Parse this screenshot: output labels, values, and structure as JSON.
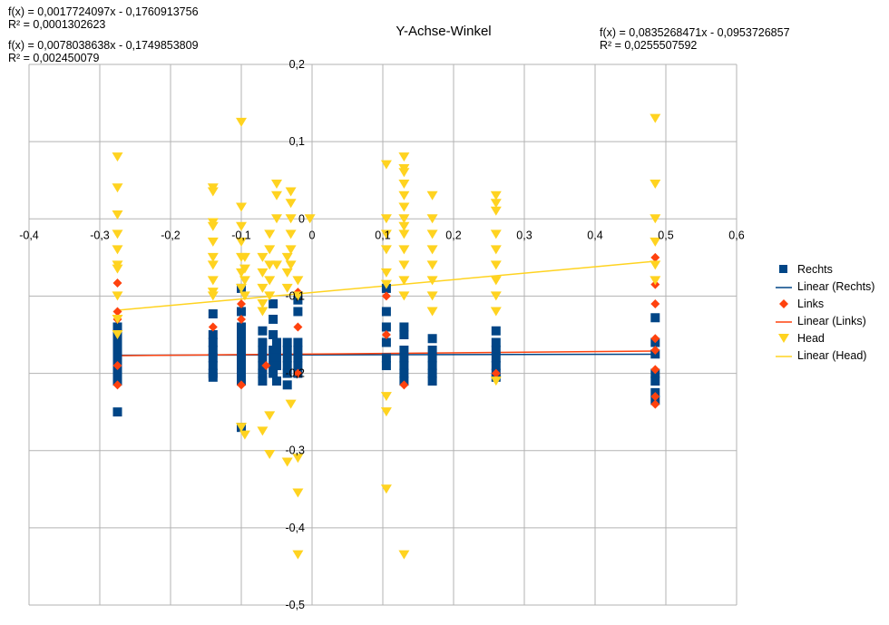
{
  "chart_data": {
    "type": "scatter",
    "title": "Y-Achse-Winkel",
    "xlim": [
      -0.4,
      0.6
    ],
    "ylim": [
      -0.5,
      0.2
    ],
    "x_ticks": [
      -0.4,
      -0.3,
      -0.2,
      -0.1,
      0,
      0.1,
      0.2,
      0.3,
      0.4,
      0.5,
      0.6
    ],
    "x_tick_labels": [
      "-0,4",
      "-0,3",
      "-0,2",
      "-0,1",
      "0",
      "0,1",
      "0,2",
      "0,3",
      "0,4",
      "0,5",
      "0,6"
    ],
    "y_ticks": [
      0.2,
      0.1,
      0,
      -0.1,
      -0.2,
      -0.3,
      -0.4,
      -0.5
    ],
    "y_tick_labels": [
      "0,2",
      "0,1",
      "0",
      "-0,1",
      "-0,2",
      "-0,3",
      "-0,4",
      "-0,5"
    ],
    "grid": true,
    "legend_position": "right",
    "series": [
      {
        "name": "Rechts",
        "marker": "square",
        "color": "#004586",
        "points": [
          [
            -0.275,
            -0.14
          ],
          [
            -0.275,
            -0.15
          ],
          [
            -0.275,
            -0.16
          ],
          [
            -0.275,
            -0.17
          ],
          [
            -0.275,
            -0.18
          ],
          [
            -0.275,
            -0.19
          ],
          [
            -0.275,
            -0.2
          ],
          [
            -0.275,
            -0.21
          ],
          [
            -0.275,
            -0.25
          ],
          [
            -0.14,
            -0.123
          ],
          [
            -0.14,
            -0.15
          ],
          [
            -0.14,
            -0.16
          ],
          [
            -0.14,
            -0.17
          ],
          [
            -0.14,
            -0.18
          ],
          [
            -0.14,
            -0.19
          ],
          [
            -0.14,
            -0.2
          ],
          [
            -0.14,
            -0.205
          ],
          [
            -0.1,
            -0.09
          ],
          [
            -0.1,
            -0.12
          ],
          [
            -0.1,
            -0.14
          ],
          [
            -0.1,
            -0.15
          ],
          [
            -0.1,
            -0.16
          ],
          [
            -0.1,
            -0.17
          ],
          [
            -0.1,
            -0.18
          ],
          [
            -0.1,
            -0.19
          ],
          [
            -0.1,
            -0.2
          ],
          [
            -0.1,
            -0.21
          ],
          [
            -0.1,
            -0.27
          ],
          [
            -0.07,
            -0.145
          ],
          [
            -0.07,
            -0.16
          ],
          [
            -0.07,
            -0.17
          ],
          [
            -0.07,
            -0.18
          ],
          [
            -0.07,
            -0.19
          ],
          [
            -0.07,
            -0.2
          ],
          [
            -0.07,
            -0.21
          ],
          [
            -0.055,
            -0.11
          ],
          [
            -0.055,
            -0.13
          ],
          [
            -0.055,
            -0.15
          ],
          [
            -0.055,
            -0.17
          ],
          [
            -0.055,
            -0.18
          ],
          [
            -0.055,
            -0.19
          ],
          [
            -0.055,
            -0.2
          ],
          [
            -0.05,
            -0.16
          ],
          [
            -0.05,
            -0.17
          ],
          [
            -0.05,
            -0.18
          ],
          [
            -0.05,
            -0.19
          ],
          [
            -0.05,
            -0.21
          ],
          [
            -0.035,
            -0.16
          ],
          [
            -0.035,
            -0.17
          ],
          [
            -0.035,
            -0.18
          ],
          [
            -0.035,
            -0.19
          ],
          [
            -0.035,
            -0.2
          ],
          [
            -0.035,
            -0.215
          ],
          [
            -0.02,
            -0.105
          ],
          [
            -0.02,
            -0.12
          ],
          [
            -0.02,
            -0.16
          ],
          [
            -0.02,
            -0.17
          ],
          [
            -0.02,
            -0.18
          ],
          [
            -0.02,
            -0.19
          ],
          [
            -0.02,
            -0.2
          ],
          [
            0.105,
            -0.09
          ],
          [
            0.105,
            -0.12
          ],
          [
            0.105,
            -0.14
          ],
          [
            0.105,
            -0.16
          ],
          [
            0.105,
            -0.18
          ],
          [
            0.105,
            -0.19
          ],
          [
            0.13,
            -0.14
          ],
          [
            0.13,
            -0.15
          ],
          [
            0.13,
            -0.17
          ],
          [
            0.13,
            -0.18
          ],
          [
            0.13,
            -0.19
          ],
          [
            0.13,
            -0.2
          ],
          [
            0.13,
            -0.21
          ],
          [
            0.17,
            -0.155
          ],
          [
            0.17,
            -0.17
          ],
          [
            0.17,
            -0.18
          ],
          [
            0.17,
            -0.19
          ],
          [
            0.17,
            -0.2
          ],
          [
            0.17,
            -0.21
          ],
          [
            0.26,
            -0.145
          ],
          [
            0.26,
            -0.16
          ],
          [
            0.26,
            -0.17
          ],
          [
            0.26,
            -0.18
          ],
          [
            0.26,
            -0.19
          ],
          [
            0.26,
            -0.2
          ],
          [
            0.26,
            -0.205
          ],
          [
            0.485,
            -0.128
          ],
          [
            0.485,
            -0.16
          ],
          [
            0.485,
            -0.175
          ],
          [
            0.485,
            -0.2
          ],
          [
            0.485,
            -0.21
          ],
          [
            0.485,
            -0.225
          ],
          [
            0.485,
            -0.235
          ]
        ]
      },
      {
        "name": "Links",
        "marker": "diamond",
        "color": "#ff420e",
        "points": [
          [
            -0.275,
            -0.083
          ],
          [
            -0.275,
            -0.12
          ],
          [
            -0.275,
            -0.13
          ],
          [
            -0.275,
            -0.19
          ],
          [
            -0.275,
            -0.215
          ],
          [
            -0.14,
            -0.14
          ],
          [
            -0.1,
            -0.11
          ],
          [
            -0.1,
            -0.13
          ],
          [
            -0.1,
            -0.215
          ],
          [
            -0.065,
            -0.19
          ],
          [
            -0.02,
            -0.095
          ],
          [
            -0.02,
            -0.14
          ],
          [
            -0.02,
            -0.2
          ],
          [
            0.105,
            -0.1
          ],
          [
            0.105,
            -0.15
          ],
          [
            0.13,
            -0.215
          ],
          [
            0.26,
            -0.2
          ],
          [
            0.485,
            -0.05
          ],
          [
            0.485,
            -0.085
          ],
          [
            0.485,
            -0.11
          ],
          [
            0.485,
            -0.155
          ],
          [
            0.485,
            -0.17
          ],
          [
            0.485,
            -0.195
          ],
          [
            0.485,
            -0.23
          ],
          [
            0.485,
            -0.24
          ]
        ]
      },
      {
        "name": "Head",
        "marker": "triangle-down",
        "color": "#ffd320",
        "points": [
          [
            -0.275,
            0.08
          ],
          [
            -0.275,
            0.04
          ],
          [
            -0.275,
            0.005
          ],
          [
            -0.275,
            -0.02
          ],
          [
            -0.275,
            -0.04
          ],
          [
            -0.275,
            -0.06
          ],
          [
            -0.275,
            -0.065
          ],
          [
            -0.275,
            -0.1
          ],
          [
            -0.275,
            -0.13
          ],
          [
            -0.275,
            -0.15
          ],
          [
            -0.14,
            0.04
          ],
          [
            -0.14,
            0.035
          ],
          [
            -0.14,
            -0.005
          ],
          [
            -0.14,
            -0.01
          ],
          [
            -0.14,
            -0.03
          ],
          [
            -0.14,
            -0.05
          ],
          [
            -0.14,
            -0.06
          ],
          [
            -0.14,
            -0.08
          ],
          [
            -0.14,
            -0.095
          ],
          [
            -0.14,
            -0.1
          ],
          [
            -0.1,
            0.125
          ],
          [
            -0.1,
            0.015
          ],
          [
            -0.1,
            -0.01
          ],
          [
            -0.1,
            -0.03
          ],
          [
            -0.1,
            -0.05
          ],
          [
            -0.1,
            -0.07
          ],
          [
            -0.1,
            -0.09
          ],
          [
            -0.1,
            -0.27
          ],
          [
            -0.095,
            -0.05
          ],
          [
            -0.095,
            -0.065
          ],
          [
            -0.095,
            -0.08
          ],
          [
            -0.095,
            -0.1
          ],
          [
            -0.095,
            -0.28
          ],
          [
            -0.07,
            -0.05
          ],
          [
            -0.07,
            -0.07
          ],
          [
            -0.07,
            -0.09
          ],
          [
            -0.07,
            -0.11
          ],
          [
            -0.07,
            -0.12
          ],
          [
            -0.07,
            -0.275
          ],
          [
            -0.06,
            -0.02
          ],
          [
            -0.06,
            -0.04
          ],
          [
            -0.06,
            -0.06
          ],
          [
            -0.06,
            -0.08
          ],
          [
            -0.06,
            -0.1
          ],
          [
            -0.06,
            -0.255
          ],
          [
            -0.06,
            -0.305
          ],
          [
            -0.05,
            0.045
          ],
          [
            -0.05,
            0.03
          ],
          [
            -0.05,
            0.0
          ],
          [
            -0.05,
            -0.06
          ],
          [
            -0.035,
            -0.05
          ],
          [
            -0.035,
            -0.07
          ],
          [
            -0.035,
            -0.09
          ],
          [
            -0.035,
            -0.315
          ],
          [
            -0.03,
            0.035
          ],
          [
            -0.03,
            0.02
          ],
          [
            -0.03,
            0.0
          ],
          [
            -0.03,
            -0.02
          ],
          [
            -0.03,
            -0.04
          ],
          [
            -0.03,
            -0.06
          ],
          [
            -0.03,
            -0.24
          ],
          [
            -0.02,
            -0.08
          ],
          [
            -0.02,
            -0.1
          ],
          [
            -0.02,
            -0.31
          ],
          [
            -0.02,
            -0.355
          ],
          [
            -0.02,
            -0.435
          ],
          [
            0.105,
            0.07
          ],
          [
            0.105,
            0.0
          ],
          [
            0.105,
            -0.02
          ],
          [
            0.105,
            -0.04
          ],
          [
            -0.003,
            0.0
          ],
          [
            0.105,
            -0.07
          ],
          [
            0.105,
            -0.085
          ],
          [
            0.105,
            -0.23
          ],
          [
            0.105,
            -0.25
          ],
          [
            0.105,
            -0.35
          ],
          [
            0.13,
            0.08
          ],
          [
            0.13,
            0.065
          ],
          [
            0.13,
            0.06
          ],
          [
            0.13,
            0.045
          ],
          [
            0.13,
            0.03
          ],
          [
            0.13,
            0.015
          ],
          [
            0.13,
            0.0
          ],
          [
            0.13,
            -0.01
          ],
          [
            0.13,
            -0.02
          ],
          [
            0.13,
            -0.04
          ],
          [
            0.13,
            -0.06
          ],
          [
            0.13,
            -0.08
          ],
          [
            0.13,
            -0.1
          ],
          [
            0.13,
            -0.435
          ],
          [
            0.17,
            0.03
          ],
          [
            0.17,
            0.0
          ],
          [
            0.17,
            -0.02
          ],
          [
            0.17,
            -0.04
          ],
          [
            0.17,
            -0.06
          ],
          [
            0.17,
            -0.08
          ],
          [
            0.17,
            -0.1
          ],
          [
            0.17,
            -0.12
          ],
          [
            0.26,
            0.03
          ],
          [
            0.26,
            0.02
          ],
          [
            0.26,
            0.01
          ],
          [
            0.26,
            -0.02
          ],
          [
            0.26,
            -0.04
          ],
          [
            0.26,
            -0.06
          ],
          [
            0.26,
            -0.08
          ],
          [
            0.26,
            -0.1
          ],
          [
            0.26,
            -0.12
          ],
          [
            0.26,
            -0.21
          ],
          [
            0.485,
            0.13
          ],
          [
            0.485,
            0.045
          ],
          [
            0.485,
            0.0
          ],
          [
            0.485,
            -0.03
          ],
          [
            0.485,
            -0.06
          ],
          [
            0.485,
            -0.08
          ]
        ]
      }
    ],
    "trendlines": [
      {
        "name": "Linear (Rechts)",
        "color": "#004586",
        "slope": 0.0017724097,
        "intercept": -0.1760913756
      },
      {
        "name": "Linear (Links)",
        "color": "#ff420e",
        "slope": 0.0078038638,
        "intercept": -0.1749853809
      },
      {
        "name": "Linear (Head)",
        "color": "#ffd320",
        "slope": 0.0835268471,
        "intercept": -0.0953726857
      }
    ],
    "annotations": {
      "rechts_eq": "f(x) = 0,0017724097x - 0,1760913756",
      "rechts_r2": "R² = 0,0001302623",
      "links_eq": "f(x) = 0,0078038638x - 0,1749853809",
      "links_r2": "R² = 0,002450079",
      "head_eq": "f(x) = 0,0835268471x - 0,0953726857",
      "head_r2": "R² = 0,0255507592"
    }
  },
  "legend": {
    "items": [
      {
        "label": "Rechts",
        "kind": "square",
        "color": "#004586"
      },
      {
        "label": "Linear (Rechts)",
        "kind": "line",
        "color": "#004586"
      },
      {
        "label": "Links",
        "kind": "diamond",
        "color": "#ff420e"
      },
      {
        "label": "Linear (Links)",
        "kind": "line",
        "color": "#ff420e"
      },
      {
        "label": "Head",
        "kind": "triangle",
        "color": "#ffd320"
      },
      {
        "label": "Linear (Head)",
        "kind": "line",
        "color": "#ffd320"
      }
    ]
  }
}
